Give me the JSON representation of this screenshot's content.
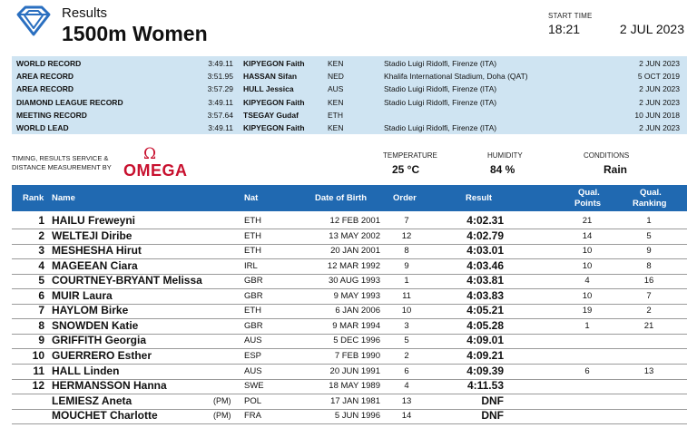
{
  "header": {
    "logo_icon": "diamond-league-icon",
    "results_label": "Results",
    "event_title": "1500m Women",
    "start_time_label": "START TIME",
    "start_time": "18:21",
    "date": "2 JUL 2023"
  },
  "records": [
    {
      "type": "WORLD RECORD",
      "mark": "3:49.11",
      "name": "KIPYEGON Faith",
      "nat": "KEN",
      "venue": "Stadio Luigi Ridolfi, Firenze (ITA)",
      "date": "2 JUN 2023"
    },
    {
      "type": "AREA RECORD",
      "mark": "3:51.95",
      "name": "HASSAN Sifan",
      "nat": "NED",
      "venue": "Khalifa International Stadium, Doha (QAT)",
      "date": "5 OCT 2019"
    },
    {
      "type": "AREA RECORD",
      "mark": "3:57.29",
      "name": "HULL Jessica",
      "nat": "AUS",
      "venue": "Stadio Luigi Ridolfi, Firenze (ITA)",
      "date": "2 JUN 2023"
    },
    {
      "type": "DIAMOND LEAGUE RECORD",
      "mark": "3:49.11",
      "name": "KIPYEGON Faith",
      "nat": "KEN",
      "venue": "Stadio Luigi Ridolfi, Firenze (ITA)",
      "date": "2 JUN 2023"
    },
    {
      "type": "MEETING RECORD",
      "mark": "3:57.64",
      "name": "TSEGAY Gudaf",
      "nat": "ETH",
      "venue": "",
      "date": "10 JUN 2018"
    },
    {
      "type": "WORLD LEAD",
      "mark": "3:49.11",
      "name": "KIPYEGON Faith",
      "nat": "KEN",
      "venue": "Stadio Luigi Ridolfi, Firenze (ITA)",
      "date": "2 JUN 2023"
    }
  ],
  "timing": {
    "line1": "TIMING, RESULTS SERVICE &",
    "line2": "DISTANCE MEASUREMENT BY",
    "brand_symbol": "Ω",
    "brand_name": "OMEGA"
  },
  "conditions": {
    "temperature_label": "TEMPERATURE",
    "temperature": "25 °C",
    "humidity_label": "HUMIDITY",
    "humidity": "84 %",
    "conditions_label": "CONDITIONS",
    "conditions": "Rain"
  },
  "table": {
    "headers": {
      "rank": "Rank",
      "name": "Name",
      "nat": "Nat",
      "dob": "Date of Birth",
      "order": "Order",
      "result": "Result",
      "qual_points_1": "Qual.",
      "qual_points_2": "Points",
      "qual_ranking_1": "Qual.",
      "qual_ranking_2": "Ranking"
    },
    "rows": [
      {
        "rank": "1",
        "name": "HAILU Freweyni",
        "pm": "",
        "nat": "ETH",
        "dob": "12 FEB 2001",
        "order": "7",
        "result": "4:02.31",
        "qual_points": "21",
        "qual_ranking": "1"
      },
      {
        "rank": "2",
        "name": "WELTEJI Diribe",
        "pm": "",
        "nat": "ETH",
        "dob": "13 MAY 2002",
        "order": "12",
        "result": "4:02.79",
        "qual_points": "14",
        "qual_ranking": "5"
      },
      {
        "rank": "3",
        "name": "MESHESHA Hirut",
        "pm": "",
        "nat": "ETH",
        "dob": "20 JAN 2001",
        "order": "8",
        "result": "4:03.01",
        "qual_points": "10",
        "qual_ranking": "9"
      },
      {
        "rank": "4",
        "name": "MAGEEAN Ciara",
        "pm": "",
        "nat": "IRL",
        "dob": "12 MAR 1992",
        "order": "9",
        "result": "4:03.46",
        "qual_points": "10",
        "qual_ranking": "8"
      },
      {
        "rank": "5",
        "name": "COURTNEY-BRYANT Melissa",
        "pm": "",
        "nat": "GBR",
        "dob": "30 AUG 1993",
        "order": "1",
        "result": "4:03.81",
        "qual_points": "4",
        "qual_ranking": "16"
      },
      {
        "rank": "6",
        "name": "MUIR Laura",
        "pm": "",
        "nat": "GBR",
        "dob": "9 MAY 1993",
        "order": "11",
        "result": "4:03.83",
        "qual_points": "10",
        "qual_ranking": "7"
      },
      {
        "rank": "7",
        "name": "HAYLOM Birke",
        "pm": "",
        "nat": "ETH",
        "dob": "6 JAN 2006",
        "order": "10",
        "result": "4:05.21",
        "qual_points": "19",
        "qual_ranking": "2"
      },
      {
        "rank": "8",
        "name": "SNOWDEN Katie",
        "pm": "",
        "nat": "GBR",
        "dob": "9 MAR 1994",
        "order": "3",
        "result": "4:05.28",
        "qual_points": "1",
        "qual_ranking": "21"
      },
      {
        "rank": "9",
        "name": "GRIFFITH Georgia",
        "pm": "",
        "nat": "AUS",
        "dob": "5 DEC 1996",
        "order": "5",
        "result": "4:09.01",
        "qual_points": "",
        "qual_ranking": ""
      },
      {
        "rank": "10",
        "name": "GUERRERO Esther",
        "pm": "",
        "nat": "ESP",
        "dob": "7 FEB 1990",
        "order": "2",
        "result": "4:09.21",
        "qual_points": "",
        "qual_ranking": ""
      },
      {
        "rank": "11",
        "name": "HALL Linden",
        "pm": "",
        "nat": "AUS",
        "dob": "20 JUN 1991",
        "order": "6",
        "result": "4:09.39",
        "qual_points": "6",
        "qual_ranking": "13"
      },
      {
        "rank": "12",
        "name": "HERMANSSON Hanna",
        "pm": "",
        "nat": "SWE",
        "dob": "18 MAY 1989",
        "order": "4",
        "result": "4:11.53",
        "qual_points": "",
        "qual_ranking": ""
      },
      {
        "rank": "",
        "name": "LEMIESZ Aneta",
        "pm": "(PM)",
        "nat": "POL",
        "dob": "17 JAN 1981",
        "order": "13",
        "result": "DNF",
        "qual_points": "",
        "qual_ranking": ""
      },
      {
        "rank": "",
        "name": "MOUCHET Charlotte",
        "pm": "(PM)",
        "nat": "FRA",
        "dob": "5 JUN 1996",
        "order": "14",
        "result": "DNF",
        "qual_points": "",
        "qual_ranking": ""
      }
    ]
  }
}
